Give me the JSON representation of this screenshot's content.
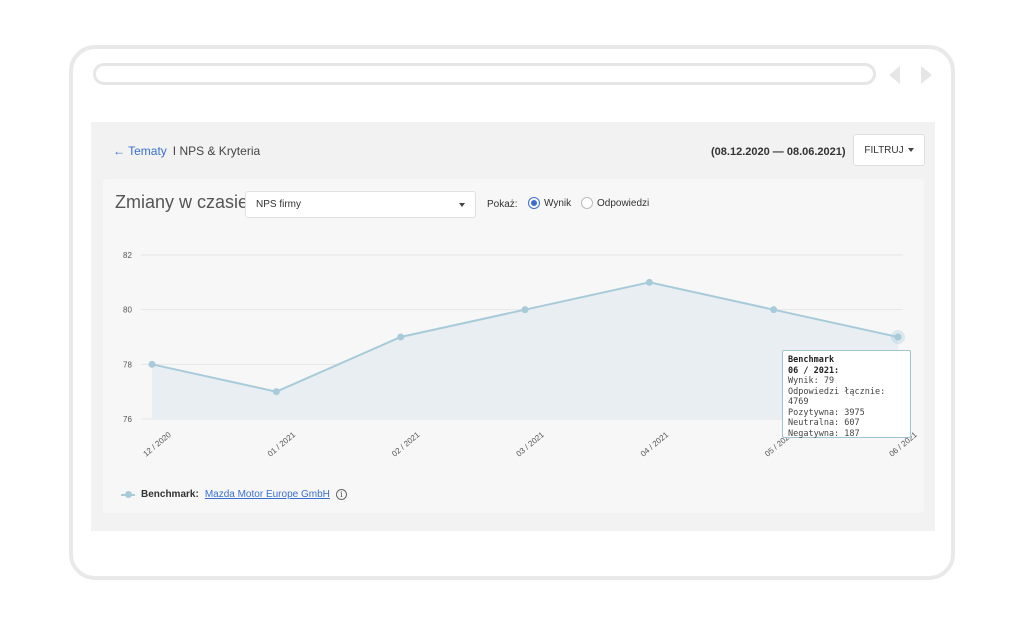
{
  "breadcrumb": {
    "back_label": "← Tematy",
    "current_label": "I NPS & Kryteria"
  },
  "header": {
    "date_range": "(08.12.2020 — 08.06.2021)",
    "filter_label": "FILTRUJ"
  },
  "panel": {
    "title": "Zmiany w czasie",
    "select_value": "NPS firmy",
    "show_label": "Pokaż:",
    "radio_options": [
      {
        "label": "Wynik",
        "selected": true
      },
      {
        "label": "Odpowiedzi",
        "selected": false
      }
    ]
  },
  "chart_data": {
    "type": "area",
    "x": [
      "12 / 2020",
      "01 / 2021",
      "02 / 2021",
      "03 / 2021",
      "04 / 2021",
      "05 / 2021",
      "06 / 2021"
    ],
    "series": [
      {
        "name": "Benchmark",
        "values": [
          78,
          77,
          79,
          80,
          81,
          80,
          79
        ]
      }
    ],
    "yticks": [
      76,
      78,
      80,
      82
    ],
    "ylim": [
      76,
      82
    ],
    "grid": true,
    "line_color": "#a8cbda",
    "fill_color": "#e8eef2",
    "highlighted_index": 6
  },
  "tooltip": {
    "series": "Benchmark",
    "period": "06 / 2021:",
    "lines": [
      "Wynik: 79",
      "Odpowiedzi łącznie: 4769",
      "Pozytywna: 3975",
      "Neutralna: 607",
      "Negatywna: 187"
    ]
  },
  "legend": {
    "label": "Benchmark:",
    "link": "Mazda Motor Europe GmbH",
    "info_icon": "info-icon"
  }
}
